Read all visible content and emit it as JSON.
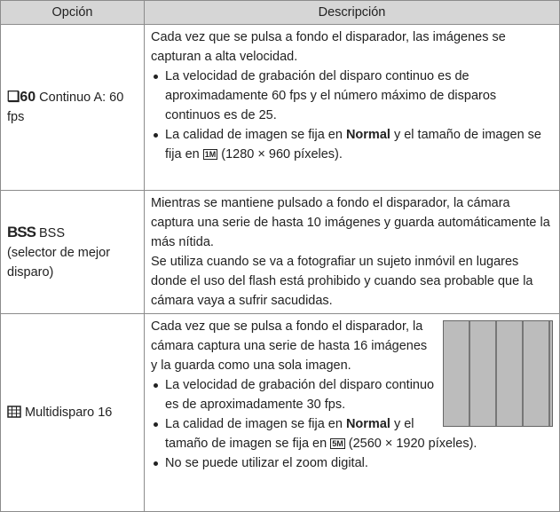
{
  "table": {
    "header": [
      "Opción",
      "Descripción"
    ],
    "rows": [
      {
        "option": {
          "icon": "60",
          "label": "Continuo A: 60 fps"
        },
        "description": {
          "paragraphs": [
            "Cada vez que se pulsa a fondo el disparador, las imágenes se capturan a alta velocidad."
          ],
          "bullets": [
            {
              "text": "La velocidad de grabación del disparo continuo es de aproximadamente 60 fps y el número máximo de disparos continuos es de 25."
            },
            {
              "before": "La calidad de imagen se fija en ",
              "bold": "Normal",
              "middle": " y el tamaño de imagen se fija en ",
              "icon": "1M",
              "after": " (1280 × 960 píxeles)."
            }
          ]
        }
      },
      {
        "option": {
          "icon": "BSS",
          "label": "BSS",
          "sub": "(selector de mejor disparo)"
        },
        "description": {
          "paragraphs": [
            "Mientras se mantiene pulsado a fondo el disparador, la cámara captura una serie de hasta 10 imágenes y guarda automáticamente la más nítida.",
            "Se utiliza cuando se va a fotografiar un sujeto inmóvil en lugares donde el uso del flash está prohibido y cuando sea probable que la cámara vaya a sufrir sacudidas."
          ]
        }
      },
      {
        "option": {
          "label": "Multidisparo 16"
        },
        "description": {
          "paragraphs": [
            "Cada vez que se pulsa a fondo el disparador, la cámara captura una serie de hasta 16 imágenes y la guarda como una sola imagen."
          ],
          "bullets": [
            {
              "text": "La velocidad de grabación del disparo continuo es de aproximadamente 30 fps."
            },
            {
              "before": "La calidad de imagen se fija en ",
              "bold": "Normal",
              "middle": " y el tamaño de imagen se fija en ",
              "icon": "5M",
              "after": " (2560 × 1920 píxeles)."
            },
            {
              "text": "No se puede utilizar el zoom digital."
            }
          ]
        }
      }
    ]
  }
}
